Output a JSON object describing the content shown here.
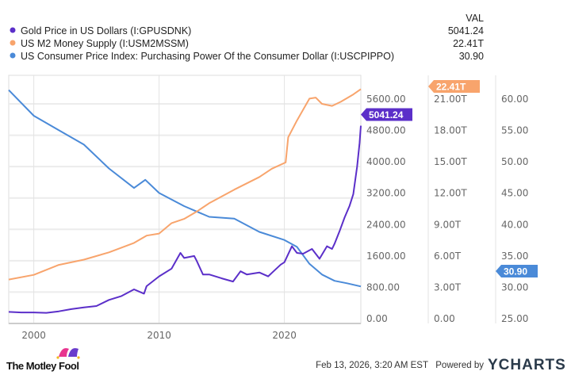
{
  "legend": {
    "header": "VAL",
    "items": [
      {
        "label": "Gold Price in US Dollars (I:GPUSDNK)",
        "value": "5041.24",
        "color": "#5b2fc9"
      },
      {
        "label": "US M2 Money Supply (I:USM2MSSM)",
        "value": "22.41T",
        "color": "#f8a46c"
      },
      {
        "label": "US Consumer Price Index: Purchasing Power Of the Consumer Dollar (I:USCPIPPO)",
        "value": "30.90",
        "color": "#4a8ad8"
      }
    ]
  },
  "chart_data": {
    "type": "line",
    "title": "",
    "xlabel": "",
    "x_ticks": [
      "2000",
      "2010",
      "2020"
    ],
    "xlim": [
      1998.0,
      2026.1
    ],
    "grid": true,
    "legend_position": "top-left",
    "series": [
      {
        "name": "Gold Price in US Dollars (I:GPUSDNK)",
        "axis": "gold",
        "last_label": "5041.24",
        "x": [
          1998,
          1999,
          2000,
          2001,
          2002,
          2003,
          2004,
          2005,
          2006,
          2007,
          2008,
          2008.8,
          2009,
          2010,
          2011,
          2011.7,
          2012,
          2012.8,
          2013,
          2013.5,
          2014,
          2015,
          2015.9,
          2016.5,
          2017,
          2018,
          2018.7,
          2019,
          2019.7,
          2020,
          2020.6,
          2021,
          2021.5,
          2022.2,
          2022.8,
          2023.4,
          2023.8,
          2024,
          2024.4,
          2024.8,
          2025.2,
          2025.5,
          2025.8,
          2026.0,
          2026.1
        ],
        "y": [
          295,
          280,
          280,
          270,
          310,
          365,
          410,
          445,
          600,
          700,
          870,
          760,
          950,
          1200,
          1400,
          1800,
          1670,
          1720,
          1600,
          1250,
          1250,
          1150,
          1070,
          1330,
          1250,
          1300,
          1200,
          1290,
          1500,
          1560,
          1970,
          1800,
          1780,
          1900,
          1650,
          1970,
          1900,
          2030,
          2350,
          2700,
          3000,
          3300,
          4000,
          4600,
          5041.24
        ]
      },
      {
        "name": "US M2 Money Supply (I:USM2MSSM)",
        "axis": "m2",
        "unit": "T",
        "last_label": "22.41T",
        "x": [
          1998,
          2000,
          2002,
          2004,
          2006,
          2008,
          2009,
          2010,
          2011,
          2012,
          2013,
          2014,
          2016,
          2018,
          2019,
          2020.1,
          2020.3,
          2021,
          2022,
          2022.5,
          2023,
          2023.8,
          2024.5,
          2025.5,
          2026.1
        ],
        "y": [
          4.2,
          4.65,
          5.6,
          6.1,
          6.8,
          7.7,
          8.4,
          8.6,
          9.6,
          10.0,
          10.7,
          11.5,
          12.8,
          14.0,
          14.8,
          15.4,
          17.8,
          19.4,
          21.5,
          21.6,
          21.0,
          20.8,
          21.2,
          21.9,
          22.41
        ]
      },
      {
        "name": "US Consumer Price Index: Purchasing Power Of the Consumer Dollar (I:USCPIPPO)",
        "axis": "cpi",
        "last_label": "30.90",
        "x": [
          1998,
          2000,
          2002,
          2004,
          2006,
          2008,
          2008.9,
          2010,
          2012,
          2014,
          2016,
          2018,
          2020,
          2021,
          2022,
          2023,
          2024,
          2025,
          2026.1
        ],
        "y": [
          62.2,
          58.1,
          55.8,
          53.5,
          49.7,
          46.6,
          47.9,
          45.8,
          43.7,
          42.0,
          41.7,
          39.6,
          38.3,
          37.2,
          34.5,
          32.8,
          31.8,
          31.4,
          30.9
        ]
      }
    ],
    "axes": {
      "gold": {
        "ylim": [
          0,
          5600
        ],
        "ticks": [
          "0.00",
          "800.00",
          "1600.00",
          "2400.00",
          "3200.00",
          "4000.00",
          "4800.00",
          "5600.00"
        ]
      },
      "m2": {
        "ylim": [
          0,
          21
        ],
        "ticks": [
          "0.00",
          "3.00T",
          "6.00T",
          "9.00T",
          "12.00T",
          "15.00T",
          "18.00T",
          "21.00T"
        ]
      },
      "cpi": {
        "ylim": [
          25,
          60
        ],
        "ticks": [
          "25.00",
          "30.00",
          "35.00",
          "40.00",
          "45.00",
          "50.00",
          "55.00",
          "60.00"
        ]
      }
    }
  },
  "footer": {
    "logo": "The Motley Fool",
    "timestamp": "Feb 13, 2026, 3:20 AM EST",
    "powered_by": "Powered by",
    "brand": "YCHARTS"
  }
}
